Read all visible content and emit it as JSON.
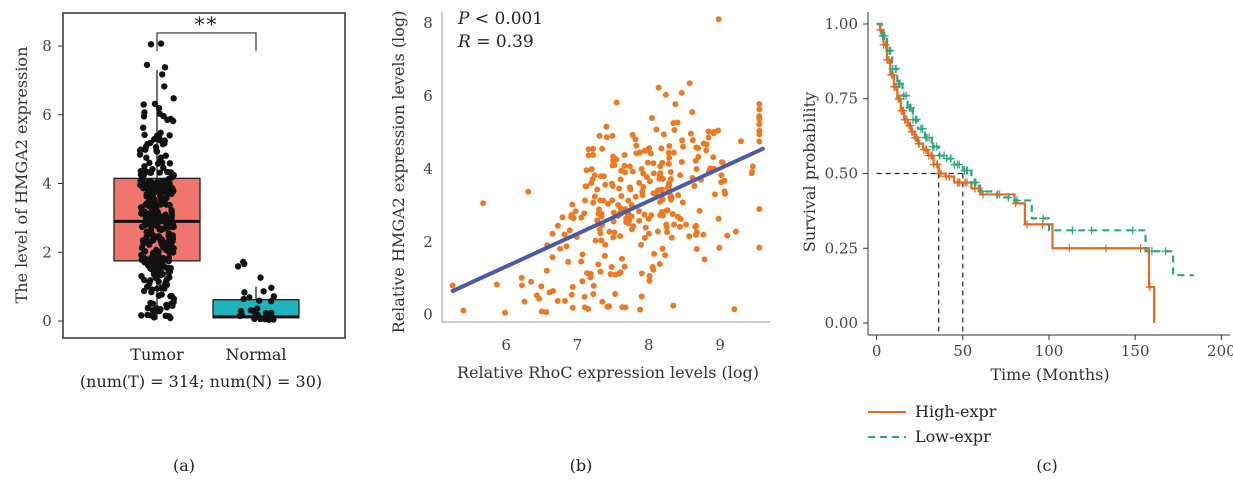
{
  "chart_data": [
    {
      "type": "box",
      "panel_label": "(a)",
      "ylabel": "The level of HMGA2 expression",
      "ylim": [
        0,
        8.4
      ],
      "yticks": [
        0,
        2,
        4,
        6,
        8
      ],
      "categories": [
        "Tumor",
        "Normal"
      ],
      "boxes": [
        {
          "name": "Tumor",
          "q1": 1.75,
          "median": 2.9,
          "q3": 4.15,
          "whisker_low": 0.05,
          "whisker_high": 7.3,
          "color": "#f0766d"
        },
        {
          "name": "Normal",
          "q1": 0.1,
          "median": 0.12,
          "q3": 0.62,
          "whisker_low": 0.0,
          "whisker_high": 1.0,
          "color": "#1fb3bc"
        }
      ],
      "points_summary": {
        "Tumor_max": 8.05,
        "Normal_max": 1.75
      },
      "significance": "**",
      "footnote": "(num(T) = 314; num(N) = 30)"
    },
    {
      "type": "scatter",
      "panel_label": "(b)",
      "xlabel": "Relative RhoC expression levels (log)",
      "ylabel": "Relative HMGA2 expression levels (log)",
      "xlim": [
        5.1,
        9.7
      ],
      "ylim": [
        -0.2,
        8.3
      ],
      "xticks": [
        6,
        7,
        8,
        9
      ],
      "yticks": [
        0,
        2,
        4,
        6,
        8
      ],
      "annotations": {
        "p_label": "P",
        "p_rest": " < 0.001",
        "r_label": "R",
        "r_rest": " = 0.39"
      },
      "fit_line": {
        "x": [
          5.25,
          9.6
        ],
        "y": [
          0.65,
          4.55
        ],
        "color": "#4a5bab"
      },
      "point_color": "#ec7a22"
    },
    {
      "type": "line",
      "subtype": "kaplan-meier",
      "panel_label": "(c)",
      "xlabel": "Time (Months)",
      "ylabel": "Survival probability",
      "xlim": [
        -5,
        205
      ],
      "ylim": [
        -0.04,
        1.04
      ],
      "xticks": [
        0,
        50,
        100,
        150,
        200
      ],
      "yticks": [
        0.0,
        0.25,
        0.5,
        0.75,
        1.0
      ],
      "ytick_labels": [
        "0.00",
        "0.25",
        "0.50",
        "0.75",
        "1.00"
      ],
      "median_reference": {
        "y": 0.5,
        "x_values": [
          36,
          50
        ]
      },
      "series": [
        {
          "name": "High-expr",
          "color": "#e26a22",
          "dash": "solid",
          "x": [
            0,
            2,
            4,
            6,
            8,
            10,
            12,
            14,
            16,
            18,
            20,
            22,
            24,
            27,
            30,
            33,
            36,
            40,
            45,
            50,
            55,
            60,
            70,
            80,
            86,
            92,
            102,
            120,
            140,
            158,
            161
          ],
          "y": [
            1.0,
            0.98,
            0.93,
            0.88,
            0.83,
            0.79,
            0.75,
            0.71,
            0.68,
            0.66,
            0.64,
            0.62,
            0.6,
            0.58,
            0.56,
            0.53,
            0.5,
            0.49,
            0.47,
            0.47,
            0.45,
            0.43,
            0.43,
            0.4,
            0.33,
            0.33,
            0.25,
            0.25,
            0.25,
            0.12,
            0.0
          ]
        },
        {
          "name": "Low-expr",
          "color": "#2aa87e",
          "dash": "dashed",
          "x": [
            0,
            3,
            6,
            9,
            12,
            15,
            18,
            21,
            24,
            28,
            32,
            36,
            40,
            45,
            50,
            55,
            60,
            70,
            80,
            90,
            100,
            120,
            140,
            156,
            165,
            172,
            184
          ],
          "y": [
            1.0,
            0.96,
            0.91,
            0.85,
            0.8,
            0.76,
            0.72,
            0.68,
            0.65,
            0.62,
            0.59,
            0.56,
            0.55,
            0.53,
            0.51,
            0.47,
            0.44,
            0.42,
            0.41,
            0.35,
            0.31,
            0.31,
            0.31,
            0.24,
            0.24,
            0.16,
            0.16
          ]
        }
      ]
    }
  ]
}
